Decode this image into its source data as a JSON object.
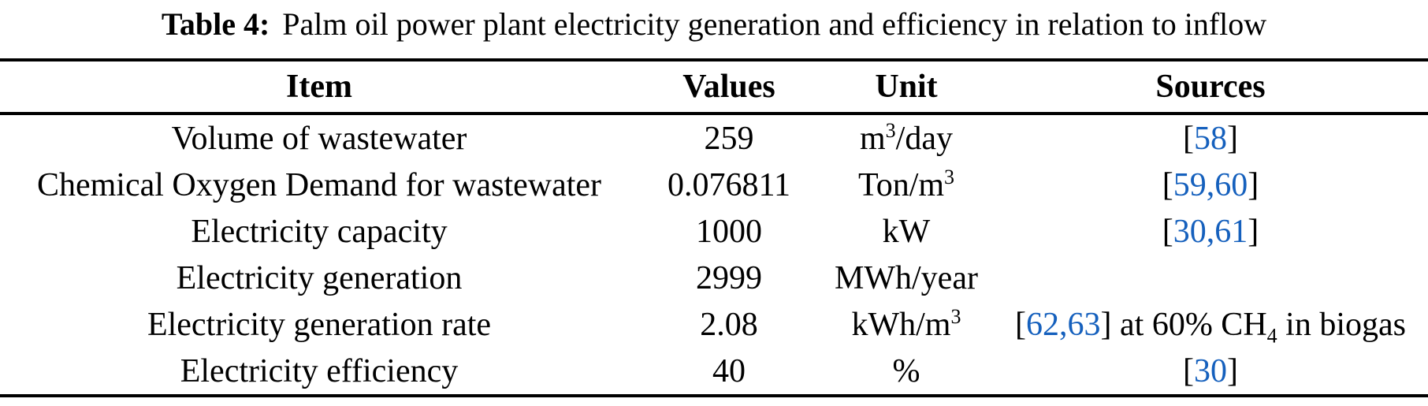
{
  "caption": {
    "label": "Table 4:",
    "text": "Palm oil power plant electricity generation and efficiency in relation to inflow"
  },
  "colors": {
    "citation_blue": "#1560BD",
    "rule_color": "#000000",
    "text_color": "#000000",
    "background": "#ffffff"
  },
  "table": {
    "columns": [
      "Item",
      "Values",
      "Unit",
      "Sources"
    ],
    "rows": [
      {
        "item": [
          {
            "t": "Volume of wastewater"
          }
        ],
        "values": [
          {
            "t": "259"
          }
        ],
        "unit": [
          {
            "t": "m"
          },
          {
            "t": "3",
            "s": "sup"
          },
          {
            "t": "/day"
          }
        ],
        "sources": [
          {
            "t": "["
          },
          {
            "t": "58",
            "s": "cite"
          },
          {
            "t": "]"
          }
        ]
      },
      {
        "item": [
          {
            "t": "Chemical Oxygen Demand for wastewater"
          }
        ],
        "values": [
          {
            "t": "0.076811"
          }
        ],
        "unit": [
          {
            "t": "Ton/m"
          },
          {
            "t": "3",
            "s": "sup"
          }
        ],
        "sources": [
          {
            "t": "["
          },
          {
            "t": "59,60",
            "s": "cite"
          },
          {
            "t": "]"
          }
        ]
      },
      {
        "item": [
          {
            "t": "Electricity capacity"
          }
        ],
        "values": [
          {
            "t": "1000"
          }
        ],
        "unit": [
          {
            "t": "kW"
          }
        ],
        "sources": [
          {
            "t": "["
          },
          {
            "t": "30,61",
            "s": "cite"
          },
          {
            "t": "]"
          }
        ]
      },
      {
        "item": [
          {
            "t": "Electricity generation"
          }
        ],
        "values": [
          {
            "t": "2999"
          }
        ],
        "unit": [
          {
            "t": "MWh/year"
          }
        ],
        "sources": []
      },
      {
        "item": [
          {
            "t": "Electricity generation rate"
          }
        ],
        "values": [
          {
            "t": "2.08"
          }
        ],
        "unit": [
          {
            "t": "kWh/m"
          },
          {
            "t": "3",
            "s": "sup"
          }
        ],
        "sources": [
          {
            "t": "["
          },
          {
            "t": "62,63",
            "s": "cite"
          },
          {
            "t": "] at 60% CH"
          },
          {
            "t": "4",
            "s": "sub"
          },
          {
            "t": " in biogas"
          }
        ]
      },
      {
        "item": [
          {
            "t": "Electricity efficiency"
          }
        ],
        "values": [
          {
            "t": "40"
          }
        ],
        "unit": [
          {
            "t": "%"
          }
        ],
        "sources": [
          {
            "t": "["
          },
          {
            "t": "30",
            "s": "cite"
          },
          {
            "t": "]"
          }
        ]
      }
    ]
  }
}
